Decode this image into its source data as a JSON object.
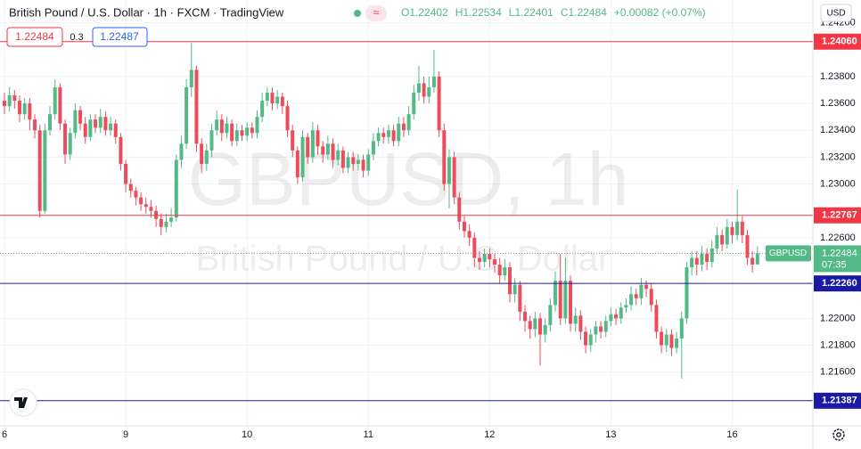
{
  "chart_data": {
    "type": "candlestick",
    "title": "British Pound / U.S. Dollar · 1h · FXCM · TradingView",
    "legend_values": [
      "O1.22402",
      "H1.22534",
      "L1.22401",
      "C1.22484"
    ],
    "change": "+0.00082 (+0.07%)",
    "bid": 1.22484,
    "spread": 0.3,
    "ask": 1.22487,
    "currency": "USD",
    "watermark": "GBPUSD, 1h",
    "watermark_subtitle": "British Pound / U.S. Dollar",
    "up_color": "#53b987",
    "down_color": "#eb4d5c",
    "grid": true,
    "ylim": [
      1.212,
      1.2437
    ],
    "yticks": [
      {
        "value": 1.242,
        "label": "1.24200"
      },
      {
        "value": 1.238,
        "label": "1.23800"
      },
      {
        "value": 1.236,
        "label": "1.23600"
      },
      {
        "value": 1.234,
        "label": "1.23400"
      },
      {
        "value": 1.232,
        "label": "1.23200"
      },
      {
        "value": 1.23,
        "label": "1.23000"
      },
      {
        "value": 1.226,
        "label": "1.22600"
      },
      {
        "value": 1.22,
        "label": "1.22000"
      },
      {
        "value": 1.218,
        "label": "1.21800"
      },
      {
        "value": 1.216,
        "label": "1.21600"
      }
    ],
    "hlines": [
      {
        "price": {
          "value": 1.2406,
          "label": "1.24060"
        },
        "color": "#f23645"
      },
      {
        "price": 1.22767,
        "color": "#f23645"
      },
      {
        "price": {
          "value": 1.2226,
          "label": "1.22260"
        },
        "color": "#1a1aa6"
      },
      {
        "price": 1.21387,
        "color": "#1a1aa6"
      }
    ],
    "last": {
      "price": 1.22484,
      "symbol": "GBPUSD",
      "countdown": "07:35",
      "color": "#53b987"
    },
    "categories": [
      "6",
      null,
      null,
      null,
      null,
      null,
      null,
      null,
      null,
      null,
      null,
      null,
      null,
      null,
      null,
      null,
      null,
      null,
      null,
      null,
      null,
      null,
      null,
      null,
      "9",
      null,
      null,
      null,
      null,
      null,
      null,
      null,
      null,
      null,
      null,
      null,
      null,
      null,
      null,
      null,
      null,
      null,
      null,
      null,
      null,
      null,
      null,
      null,
      "10",
      null,
      null,
      null,
      null,
      null,
      null,
      null,
      null,
      null,
      null,
      null,
      null,
      null,
      null,
      null,
      null,
      null,
      null,
      null,
      null,
      null,
      null,
      null,
      "11",
      null,
      null,
      null,
      null,
      null,
      null,
      null,
      null,
      null,
      null,
      null,
      null,
      null,
      null,
      null,
      null,
      null,
      null,
      null,
      null,
      null,
      null,
      null,
      "12",
      null,
      null,
      null,
      null,
      null,
      null,
      null,
      null,
      null,
      null,
      null,
      null,
      null,
      null,
      null,
      null,
      null,
      null,
      null,
      null,
      null,
      null,
      null,
      "13",
      null,
      null,
      null,
      null,
      null,
      null,
      null,
      null,
      null,
      null,
      null,
      null,
      null,
      null,
      null,
      null,
      null,
      null,
      null,
      null,
      null,
      null,
      null,
      "16",
      null,
      null,
      null,
      null,
      null
    ],
    "open": [
      1.2362,
      1.2358,
      1.2366,
      1.2362,
      1.2352,
      1.236,
      1.2348,
      1.234,
      1.228,
      1.234,
      1.2352,
      1.2372,
      1.2345,
      1.2322,
      1.2338,
      1.2355,
      1.2345,
      1.2335,
      1.2348,
      1.2342,
      1.235,
      1.234,
      1.2345,
      1.2335,
      1.2315,
      1.23,
      1.2295,
      1.229,
      1.2285,
      1.2283,
      1.228,
      1.2274,
      1.2268,
      1.2272,
      1.2275,
      1.2318,
      1.233,
      1.2372,
      1.2385,
      1.233,
      1.2315,
      1.2325,
      1.234,
      1.2348,
      1.2338,
      1.2345,
      1.2332,
      1.234,
      1.2336,
      1.2342,
      1.2338,
      1.235,
      1.2362,
      1.2368,
      1.236,
      1.2365,
      1.2358,
      1.234,
      1.2325,
      1.2305,
      1.2335,
      1.232,
      1.234,
      1.2328,
      1.2322,
      1.233,
      1.2318,
      1.2325,
      1.2312,
      1.232,
      1.2315,
      1.2318,
      1.231,
      1.2322,
      1.2332,
      1.2338,
      1.2335,
      1.234,
      1.2332,
      1.2345,
      1.234,
      1.2352,
      1.2368,
      1.2375,
      1.2365,
      1.2372,
      1.238,
      1.234,
      1.23,
      1.232,
      1.229,
      1.2272,
      1.2265,
      1.226,
      1.2245,
      1.2242,
      1.2248,
      1.2244,
      1.224,
      1.2232,
      1.2238,
      1.2218,
      1.2225,
      1.2205,
      1.2198,
      1.2192,
      1.22,
      1.2188,
      1.2195,
      1.221,
      1.2228,
      1.22,
      1.2228,
      1.2196,
      1.2202,
      1.219,
      1.218,
      1.2188,
      1.2194,
      1.219,
      1.2198,
      1.2203,
      1.22,
      1.2208,
      1.221,
      1.2218,
      1.2215,
      1.2225,
      1.2222,
      1.221,
      1.219,
      1.218,
      1.2188,
      1.2178,
      1.2185,
      1.22,
      1.2238,
      1.2245,
      1.224,
      1.2248,
      1.2242,
      1.2252,
      1.2262,
      1.2255,
      1.2268,
      1.2262,
      1.2272,
      1.2262,
      1.2245,
      1.22402
    ],
    "high": [
      1.2368,
      1.2372,
      1.237,
      1.2366,
      1.2364,
      1.2364,
      1.2352,
      1.2344,
      1.2345,
      1.2358,
      1.2378,
      1.2375,
      1.2348,
      1.2342,
      1.236,
      1.2358,
      1.235,
      1.2352,
      1.2352,
      1.2356,
      1.2354,
      1.235,
      1.2348,
      1.2338,
      1.2318,
      1.2304,
      1.2298,
      1.2294,
      1.229,
      1.2288,
      1.2284,
      1.2278,
      1.2278,
      1.2282,
      1.2322,
      1.2336,
      1.2378,
      1.2405,
      1.2388,
      1.2334,
      1.233,
      1.2345,
      1.2355,
      1.2352,
      1.235,
      1.2348,
      1.2345,
      1.2344,
      1.2346,
      1.2346,
      1.2355,
      1.2368,
      1.2372,
      1.2372,
      1.237,
      1.2368,
      1.2362,
      1.2344,
      1.2328,
      1.234,
      1.2338,
      1.2346,
      1.2344,
      1.2332,
      1.2336,
      1.2334,
      1.233,
      1.2328,
      1.2324,
      1.2324,
      1.2322,
      1.2322,
      1.2326,
      1.2338,
      1.2342,
      1.2342,
      1.2344,
      1.2344,
      1.235,
      1.235,
      1.2358,
      1.2374,
      1.2388,
      1.238,
      1.238,
      1.24,
      1.2384,
      1.2345,
      1.2326,
      1.2324,
      1.2294,
      1.2276,
      1.227,
      1.2264,
      1.225,
      1.2252,
      1.2252,
      1.2248,
      1.2245,
      1.2244,
      1.2242,
      1.223,
      1.2228,
      1.221,
      1.2202,
      1.2205,
      1.2204,
      1.22,
      1.2215,
      1.2235,
      1.2248,
      1.2245,
      1.2232,
      1.2208,
      1.2206,
      1.2194,
      1.2192,
      1.2198,
      1.2198,
      1.2202,
      1.2208,
      1.2207,
      1.2212,
      1.2215,
      1.2224,
      1.2222,
      1.223,
      1.2228,
      1.2226,
      1.2214,
      1.2194,
      1.2192,
      1.2192,
      1.219,
      1.2205,
      1.2242,
      1.225,
      1.225,
      1.2254,
      1.2252,
      1.2258,
      1.2268,
      1.2266,
      1.2274,
      1.2272,
      1.2296,
      1.2276,
      1.2266,
      1.225,
      1.22534
    ],
    "low": [
      1.2352,
      1.2354,
      1.2356,
      1.2346,
      1.2348,
      1.234,
      1.2334,
      1.2275,
      1.2278,
      1.2336,
      1.2348,
      1.234,
      1.2315,
      1.2318,
      1.2334,
      1.234,
      1.233,
      1.2332,
      1.2338,
      1.2338,
      1.2336,
      1.2336,
      1.233,
      1.231,
      1.2294,
      1.229,
      1.2284,
      1.228,
      1.2278,
      1.2275,
      1.2268,
      1.2262,
      1.2264,
      1.2268,
      1.2272,
      1.2312,
      1.2326,
      1.2365,
      1.2324,
      1.2308,
      1.231,
      1.232,
      1.2336,
      1.2332,
      1.2334,
      1.2328,
      1.2328,
      1.2332,
      1.2332,
      1.2334,
      1.2334,
      1.2346,
      1.2358,
      1.2355,
      1.2356,
      1.2352,
      1.2335,
      1.232,
      1.23,
      1.2302,
      1.2315,
      1.2316,
      1.2322,
      1.2316,
      1.2318,
      1.2312,
      1.2314,
      1.2308,
      1.2308,
      1.231,
      1.231,
      1.2305,
      1.2306,
      1.2318,
      1.2328,
      1.233,
      1.233,
      1.2328,
      1.2328,
      1.2335,
      1.2336,
      1.2348,
      1.2362,
      1.236,
      1.236,
      1.2368,
      1.2335,
      1.2295,
      1.2282,
      1.2285,
      1.2266,
      1.226,
      1.2254,
      1.2238,
      1.2236,
      1.2238,
      1.2238,
      1.2234,
      1.2226,
      1.2228,
      1.2212,
      1.2212,
      1.2198,
      1.219,
      1.2185,
      1.2186,
      1.2165,
      1.2182,
      1.219,
      1.2205,
      1.2195,
      1.2196,
      1.219,
      1.219,
      1.2184,
      1.2174,
      1.2175,
      1.2182,
      1.2185,
      1.2186,
      1.2194,
      1.2195,
      1.2196,
      1.2204,
      1.2206,
      1.221,
      1.221,
      1.2216,
      1.2205,
      1.2185,
      1.2174,
      1.2175,
      1.2172,
      1.2174,
      1.2155,
      1.2196,
      1.2232,
      1.2232,
      1.2235,
      1.2236,
      1.2238,
      1.2248,
      1.225,
      1.2252,
      1.2256,
      1.2258,
      1.2256,
      1.224,
      1.2234,
      1.22401
    ],
    "close": [
      1.2358,
      1.2366,
      1.2362,
      1.2352,
      1.236,
      1.2348,
      1.234,
      1.228,
      1.234,
      1.2352,
      1.2372,
      1.2345,
      1.2322,
      1.2338,
      1.2355,
      1.2345,
      1.2335,
      1.2348,
      1.2342,
      1.235,
      1.234,
      1.2345,
      1.2335,
      1.2315,
      1.23,
      1.2295,
      1.229,
      1.2285,
      1.2283,
      1.228,
      1.2274,
      1.2268,
      1.2272,
      1.2275,
      1.2318,
      1.233,
      1.2372,
      1.2385,
      1.233,
      1.2315,
      1.2325,
      1.234,
      1.2348,
      1.2338,
      1.2345,
      1.2332,
      1.234,
      1.2336,
      1.2342,
      1.2338,
      1.235,
      1.2362,
      1.2368,
      1.236,
      1.2365,
      1.2358,
      1.234,
      1.2325,
      1.2305,
      1.2335,
      1.232,
      1.234,
      1.2328,
      1.2322,
      1.233,
      1.2318,
      1.2325,
      1.2312,
      1.232,
      1.2315,
      1.2318,
      1.231,
      1.2322,
      1.2332,
      1.2338,
      1.2335,
      1.234,
      1.2332,
      1.2345,
      1.234,
      1.2352,
      1.2368,
      1.2375,
      1.2365,
      1.2372,
      1.238,
      1.234,
      1.23,
      1.232,
      1.229,
      1.2272,
      1.2265,
      1.226,
      1.2245,
      1.2242,
      1.2248,
      1.2244,
      1.224,
      1.2232,
      1.2238,
      1.2218,
      1.2225,
      1.2205,
      1.2198,
      1.2192,
      1.22,
      1.2188,
      1.2195,
      1.221,
      1.2228,
      1.22,
      1.2228,
      1.2196,
      1.2202,
      1.219,
      1.218,
      1.2188,
      1.2194,
      1.219,
      1.2198,
      1.2203,
      1.22,
      1.2208,
      1.221,
      1.2218,
      1.2215,
      1.2225,
      1.2222,
      1.221,
      1.219,
      1.218,
      1.2188,
      1.2178,
      1.2185,
      1.22,
      1.2238,
      1.2245,
      1.224,
      1.2248,
      1.2242,
      1.2252,
      1.2262,
      1.2255,
      1.2268,
      1.2262,
      1.2272,
      1.2262,
      1.2245,
      1.224,
      1.22484
    ]
  }
}
